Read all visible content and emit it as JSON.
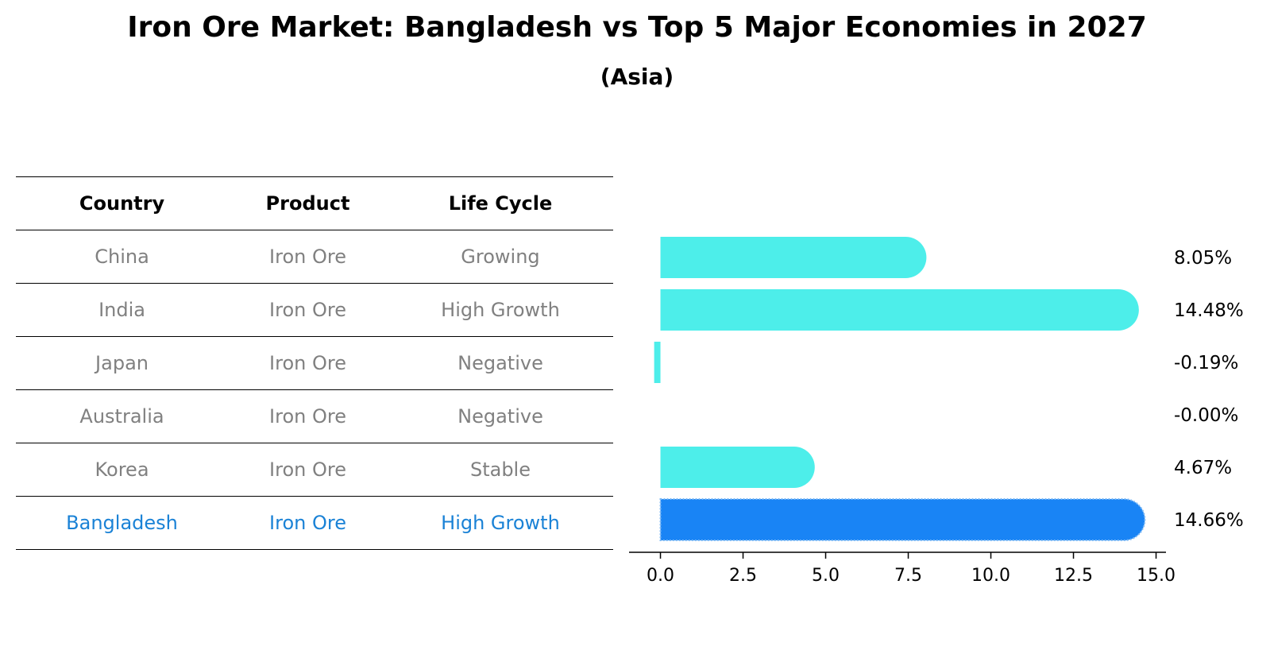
{
  "title": "Iron Ore Market: Bangladesh vs Top 5 Major Economies in 2027",
  "subtitle": "(Asia)",
  "table": {
    "headers": [
      "Country",
      "Product",
      "Life Cycle"
    ],
    "rows": [
      [
        "China",
        "Iron Ore",
        "Growing"
      ],
      [
        "India",
        "Iron Ore",
        "High Growth"
      ],
      [
        "Japan",
        "Iron Ore",
        "Negative"
      ],
      [
        "Australia",
        "Iron Ore",
        "Negative"
      ],
      [
        "Korea",
        "Iron Ore",
        "Stable"
      ],
      [
        "Bangladesh",
        "Iron Ore",
        "High Growth"
      ]
    ]
  },
  "chart_data": {
    "type": "bar",
    "orientation": "horizontal",
    "categories": [
      "China",
      "India",
      "Japan",
      "Australia",
      "Korea",
      "Bangladesh"
    ],
    "values": [
      8.05,
      14.48,
      -0.19,
      -0.0,
      4.67,
      14.66
    ],
    "labels": [
      "8.05%",
      "14.48%",
      "-0.19%",
      "-0.00%",
      "4.67%",
      "14.66%"
    ],
    "highlight": "Bangladesh",
    "xlim": [
      -0.95,
      15.3
    ],
    "xticks": [
      0.0,
      2.5,
      5.0,
      7.5,
      10.0,
      12.5,
      15.0
    ],
    "xtick_labels": [
      "0.0",
      "2.5",
      "5.0",
      "7.5",
      "10.0",
      "12.5",
      "15.0"
    ],
    "colors": {
      "bar": "#4deeea",
      "highlight": "#1984f5"
    }
  }
}
